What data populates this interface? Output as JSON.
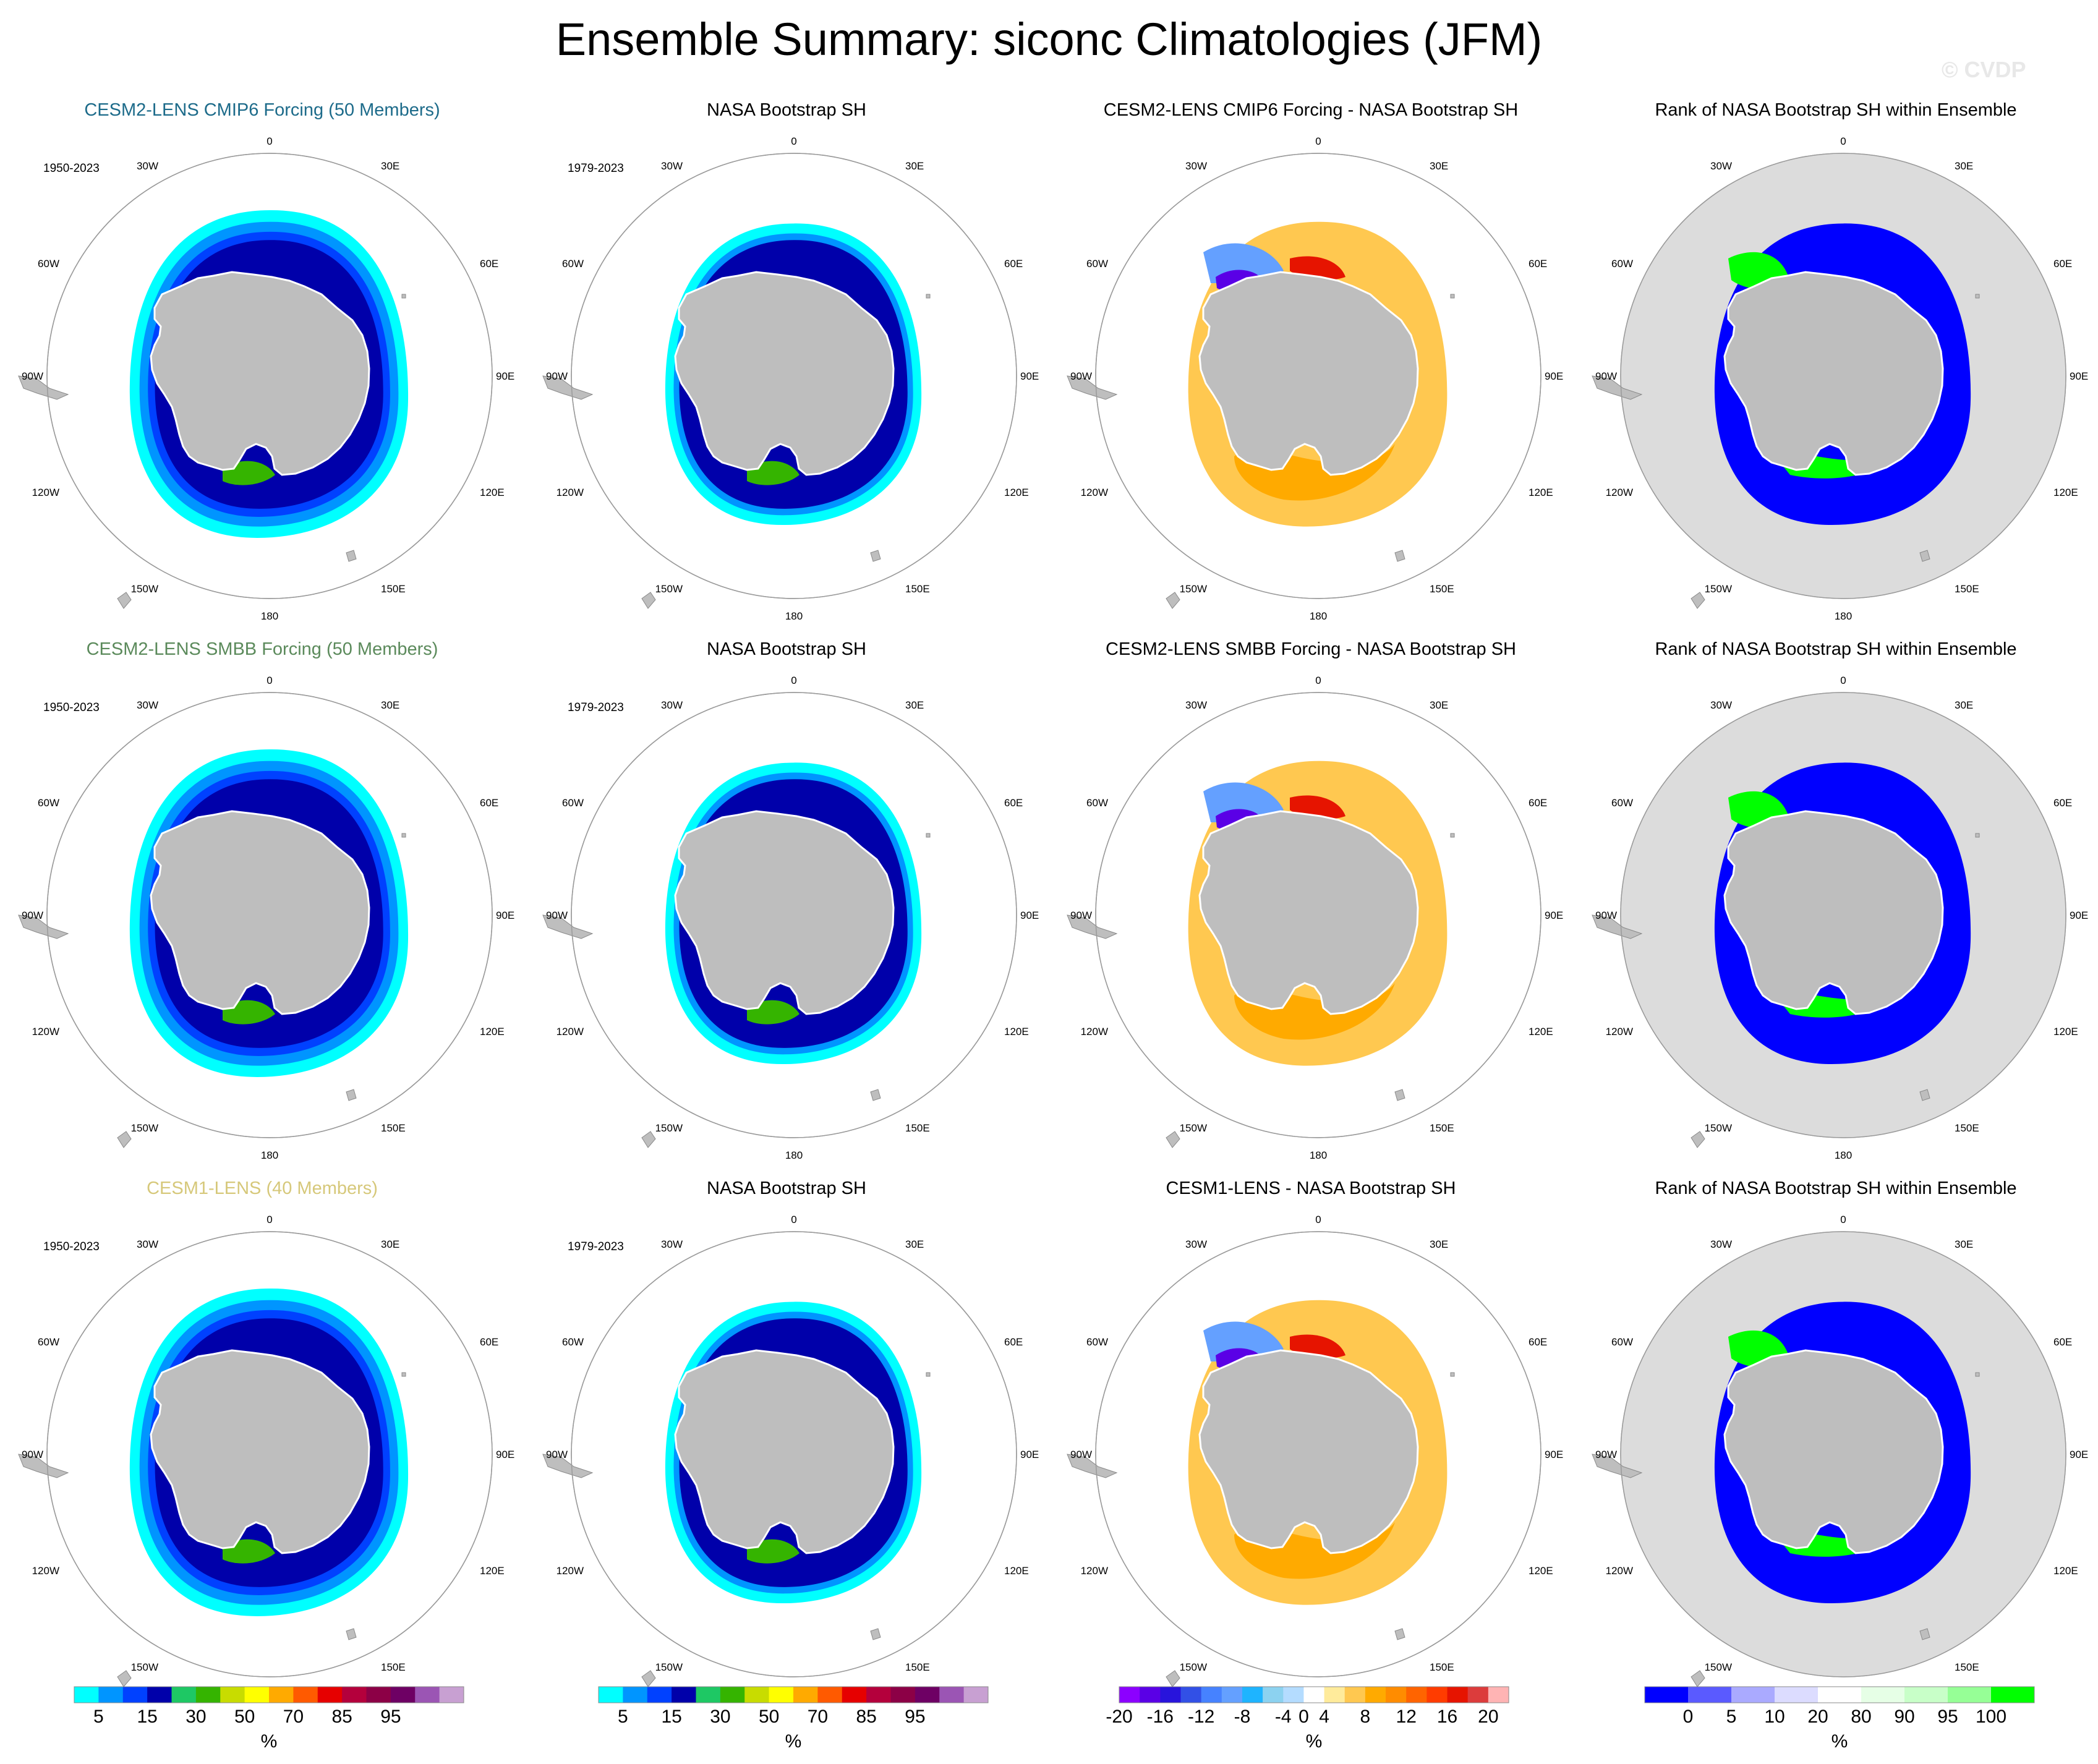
{
  "title": "Ensemble Summary: siconc Climatologies (JFM)",
  "watermark": "© CVDP",
  "map_labels": {
    "top": "0",
    "bottom": "180",
    "left": "90W",
    "right": "90E",
    "ul1": "30W",
    "ul2": "60W",
    "ur1": "30E",
    "ur2": "60E",
    "ll1": "120W",
    "ll2": "150W",
    "lr1": "120E",
    "lr2": "150E"
  },
  "rows": [
    {
      "model": {
        "title": "CESM2-LENS CMIP6 Forcing (50 Members)",
        "title_color": "#1d6b8a",
        "period": "1950-2023"
      },
      "obs": {
        "title": "NASA Bootstrap SH",
        "period": "1979-2023"
      },
      "diff": {
        "title": "CESM2-LENS CMIP6 Forcing - NASA Bootstrap SH"
      },
      "rank": {
        "title": "Rank of NASA Bootstrap SH within Ensemble"
      }
    },
    {
      "model": {
        "title": "CESM2-LENS SMBB Forcing (50 Members)",
        "title_color": "#5b8a5b",
        "period": "1950-2023"
      },
      "obs": {
        "title": "NASA Bootstrap SH",
        "period": "1979-2023"
      },
      "diff": {
        "title": "CESM2-LENS SMBB Forcing - NASA Bootstrap SH"
      },
      "rank": {
        "title": "Rank of NASA Bootstrap SH within Ensemble"
      }
    },
    {
      "model": {
        "title": "CESM1-LENS (40 Members)",
        "title_color": "#d6c87a",
        "period": "1950-2023"
      },
      "obs": {
        "title": "NASA Bootstrap SH",
        "period": "1979-2023"
      },
      "diff": {
        "title": "CESM1-LENS - NASA Bootstrap SH"
      },
      "rank": {
        "title": "Rank of NASA Bootstrap SH within Ensemble"
      }
    }
  ],
  "chart_data": {
    "type": "heatmap",
    "projection": "south polar stereographic",
    "grid": "off",
    "colorbars": [
      {
        "name": "concentration",
        "unit": "%",
        "colors": [
          "#00ffff",
          "#0095ff",
          "#0041ff",
          "#0000aa",
          "#1ec864",
          "#35b400",
          "#c8dc00",
          "#ffff00",
          "#ffaa00",
          "#ff5a00",
          "#e60000",
          "#b4003c",
          "#8c0046",
          "#6e0064",
          "#9b55b4",
          "#c8a0d2"
        ],
        "tick_labels": [
          "5",
          "15",
          "30",
          "50",
          "70",
          "85",
          "95"
        ]
      },
      {
        "name": "difference",
        "unit": "%",
        "colors": [
          "#8c00ff",
          "#5a00e6",
          "#2814dc",
          "#3250e6",
          "#4682ff",
          "#64a0ff",
          "#1eb4ff",
          "#8cd2f0",
          "#b4dcff",
          "#ffffff",
          "#ffeb9b",
          "#ffc850",
          "#ffaa00",
          "#ff8c00",
          "#ff6400",
          "#ff3c00",
          "#e61400",
          "#dc3c3c",
          "#ffb4b4"
        ],
        "tick_labels": [
          "-20",
          "-16",
          "-12",
          "-8",
          "-4",
          "0",
          "4",
          "8",
          "12",
          "16",
          "20"
        ]
      },
      {
        "name": "rank",
        "unit": "%",
        "colors": [
          "#0000ff",
          "#5a5aff",
          "#aaaaff",
          "#dcdcff",
          "#ffffff",
          "#e6ffe6",
          "#c8ffc8",
          "#96ff96",
          "#00ff00"
        ],
        "tick_labels": [
          "0",
          "5",
          "10",
          "20",
          "80",
          "90",
          "95",
          "100"
        ]
      }
    ],
    "panels_note": "3 rows x 4 columns: model climatology, observed climatology, model minus observations, rank of observations within ensemble"
  }
}
